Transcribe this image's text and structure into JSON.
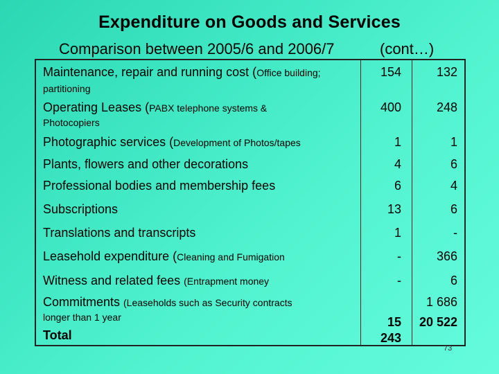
{
  "slide": {
    "title": "Expenditure on Goods and Services",
    "subtitle": "Comparison between 2005/6 and 2006/7",
    "subtitle_cont": "(cont…)",
    "page_number": "73"
  },
  "table": {
    "rows": [
      {
        "label_main": "Maintenance, repair and running cost (",
        "label_small": "Office building;",
        "label_line2": "partitioning",
        "v2005": "154",
        "v2006": "132"
      },
      {
        "label_main": "Operating Leases (",
        "label_small": "PABX telephone systems &",
        "label_line2": "Photocopiers",
        "v2005": "400",
        "v2006": "248"
      },
      {
        "label_main": "Photographic services (",
        "label_small": "Development of Photos/tapes",
        "label_line2": "",
        "v2005": "1",
        "v2006": "1"
      },
      {
        "label_main": "Plants, flowers and other decorations",
        "label_small": "",
        "label_line2": "",
        "v2005": "4",
        "v2006": "6"
      },
      {
        "label_main": "Professional bodies and membership fees",
        "label_small": "",
        "label_line2": "",
        "v2005": "6",
        "v2006": "4"
      },
      {
        "label_main": "Subscriptions",
        "label_small": "",
        "label_line2": "",
        "v2005": "13",
        "v2006": "6"
      },
      {
        "label_main": "Translations and transcripts",
        "label_small": "",
        "label_line2": "",
        "v2005": "1",
        "v2006": "-"
      },
      {
        "label_main": "Leasehold expenditure (",
        "label_small": "Cleaning and Fumigation",
        "label_line2": "",
        "v2005": "-",
        "v2006": "366"
      },
      {
        "label_main": "Witness and related fees ",
        "label_small": "(Entrapment money",
        "label_line2": "",
        "v2005": "-",
        "v2006": "6"
      },
      {
        "label_main": "Commitments ",
        "label_small": "(Leaseholds such as Security contracts",
        "label_line2": "longer than 1 year",
        "v2005": "",
        "v2006": "1 686"
      }
    ],
    "total": {
      "label": "Total",
      "v2005_line1": "15",
      "v2005_line2": "243",
      "v2006": "20 522"
    }
  }
}
